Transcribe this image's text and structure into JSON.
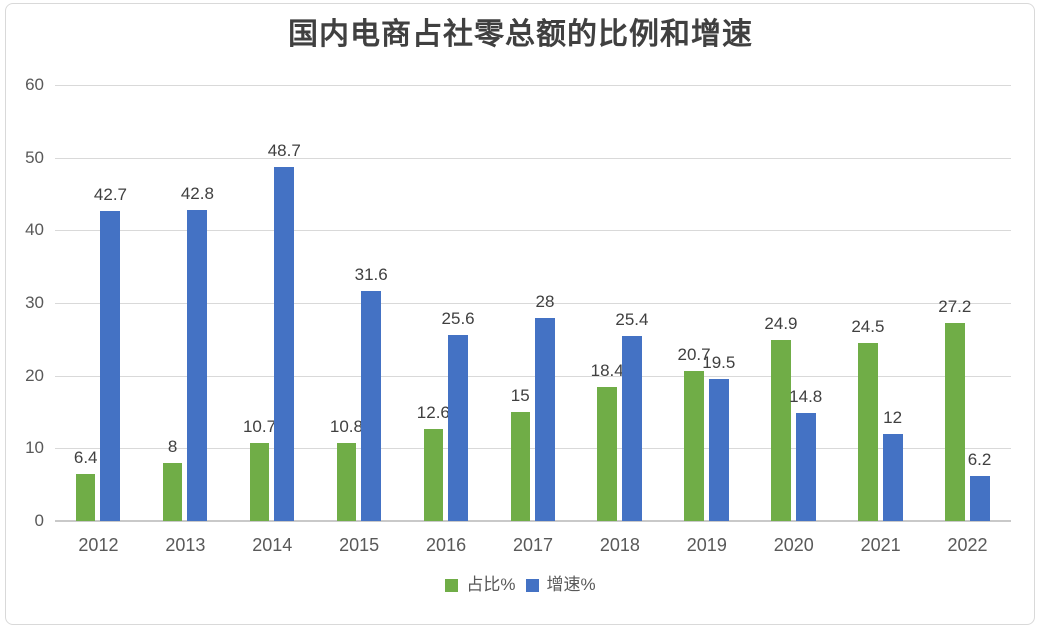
{
  "chart_data": {
    "type": "bar",
    "title": "国内电商占社零总额的比例和增速",
    "categories": [
      "2012",
      "2013",
      "2014",
      "2015",
      "2016",
      "2017",
      "2018",
      "2019",
      "2020",
      "2021",
      "2022"
    ],
    "series": [
      {
        "name": "占比%",
        "color": "#70AD47",
        "values": [
          6.4,
          8,
          10.7,
          10.8,
          12.6,
          15,
          18.4,
          20.7,
          24.9,
          24.5,
          27.2
        ]
      },
      {
        "name": "增速%",
        "color": "#4472C4",
        "values": [
          42.7,
          42.8,
          48.7,
          31.6,
          25.6,
          28,
          25.4,
          19.5,
          14.8,
          12,
          6.2
        ]
      }
    ],
    "xlabel": "",
    "ylabel": "",
    "ylim": [
      0,
      60
    ],
    "yticks": [
      0,
      10,
      20,
      30,
      40,
      50,
      60
    ],
    "grid": true,
    "value_labels": true,
    "legend_position": "bottom",
    "colors": {
      "grid": "#D9D9D9",
      "axis_line": "#C9C9C9",
      "tick_text": "#595959",
      "value_label_text": "#404040",
      "title_text": "#404040",
      "chart_border": "#D9D9D9"
    }
  }
}
